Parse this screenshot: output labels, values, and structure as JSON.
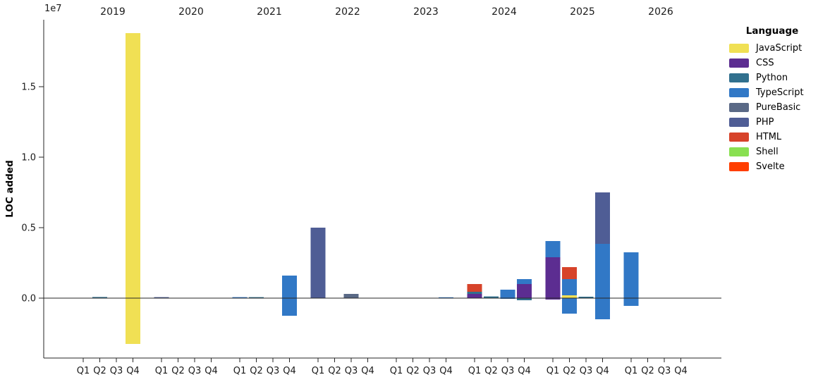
{
  "chart": {
    "ylabel": "LOC added",
    "offset_label": "1e7",
    "legend": {
      "title": "Language",
      "position": "right",
      "entries": [
        {
          "label": "JavaScript",
          "color": "#f0e054"
        },
        {
          "label": "CSS",
          "color": "#5c2d91"
        },
        {
          "label": "Python",
          "color": "#31708e"
        },
        {
          "label": "TypeScript",
          "color": "#3178c6"
        },
        {
          "label": "PureBasic",
          "color": "#5a6986"
        },
        {
          "label": "PHP",
          "color": "#4f5d95"
        },
        {
          "label": "HTML",
          "color": "#d7432a"
        },
        {
          "label": "Shell",
          "color": "#89e051"
        },
        {
          "label": "Svelte",
          "color": "#ff3e00"
        }
      ]
    }
  },
  "chart_data": {
    "type": "bar",
    "stacked": true,
    "title": "",
    "xlabel": "",
    "ylabel": "LOC added",
    "y_unit_multiplier": "1e7",
    "grid": false,
    "legend_position": "right",
    "years": [
      2019,
      2020,
      2021,
      2022,
      2023,
      2024,
      2025,
      2026
    ],
    "quarters": [
      "Q1",
      "Q2",
      "Q3",
      "Q4"
    ],
    "ylim": [
      -4250000,
      19750000
    ],
    "yticks": [
      {
        "value": 0,
        "label": "0.0"
      },
      {
        "value": 5000000,
        "label": "0.5"
      },
      {
        "value": 10000000,
        "label": "1.0"
      },
      {
        "value": 15000000,
        "label": "1.5"
      }
    ],
    "bars": [
      {
        "year": 2019,
        "quarter": "Q2",
        "segments": [
          {
            "language": "Python",
            "value": 80000
          }
        ]
      },
      {
        "year": 2019,
        "quarter": "Q4",
        "segments": [
          {
            "language": "JavaScript",
            "value": 18800000
          },
          {
            "language": "JavaScript",
            "value": -3250000
          }
        ]
      },
      {
        "year": 2020,
        "quarter": "Q1",
        "segments": [
          {
            "language": "PHP",
            "value": 70000
          }
        ]
      },
      {
        "year": 2021,
        "quarter": "Q1",
        "segments": [
          {
            "language": "TypeScript",
            "value": 70000
          }
        ]
      },
      {
        "year": 2021,
        "quarter": "Q2",
        "segments": [
          {
            "language": "Python",
            "value": 70000
          }
        ]
      },
      {
        "year": 2021,
        "quarter": "Q4",
        "segments": [
          {
            "language": "TypeScript",
            "value": 1600000
          },
          {
            "language": "TypeScript",
            "value": -1250000
          }
        ]
      },
      {
        "year": 2022,
        "quarter": "Q1",
        "segments": [
          {
            "language": "PHP",
            "value": 5000000
          }
        ]
      },
      {
        "year": 2022,
        "quarter": "Q3",
        "segments": [
          {
            "language": "PureBasic",
            "value": 300000
          }
        ]
      },
      {
        "year": 2023,
        "quarter": "Q4",
        "segments": [
          {
            "language": "TypeScript",
            "value": 60000
          }
        ]
      },
      {
        "year": 2024,
        "quarter": "Q1",
        "segments": [
          {
            "language": "CSS",
            "value": 300000
          },
          {
            "language": "Python",
            "value": 150000
          },
          {
            "language": "HTML",
            "value": 550000
          }
        ]
      },
      {
        "year": 2024,
        "quarter": "Q2",
        "segments": [
          {
            "language": "Python",
            "value": 120000
          }
        ]
      },
      {
        "year": 2024,
        "quarter": "Q3",
        "segments": [
          {
            "language": "TypeScript",
            "value": 600000
          },
          {
            "language": "TypeScript",
            "value": -50000
          }
        ]
      },
      {
        "year": 2024,
        "quarter": "Q4",
        "segments": [
          {
            "language": "CSS",
            "value": 1000000
          },
          {
            "language": "TypeScript",
            "value": 350000
          },
          {
            "language": "Python",
            "value": -150000
          }
        ]
      },
      {
        "year": 2025,
        "quarter": "Q1",
        "segments": [
          {
            "language": "CSS",
            "value": 2900000
          },
          {
            "language": "TypeScript",
            "value": 1150000
          },
          {
            "language": "CSS",
            "value": -100000
          }
        ]
      },
      {
        "year": 2025,
        "quarter": "Q2",
        "segments": [
          {
            "language": "JavaScript",
            "value": 200000
          },
          {
            "language": "TypeScript",
            "value": 1150000
          },
          {
            "language": "HTML",
            "value": 850000
          },
          {
            "language": "TypeScript",
            "value": -1100000
          }
        ]
      },
      {
        "year": 2025,
        "quarter": "Q3",
        "segments": [
          {
            "language": "Python",
            "value": 100000
          }
        ]
      },
      {
        "year": 2025,
        "quarter": "Q4",
        "segments": [
          {
            "language": "TypeScript",
            "value": 3850000
          },
          {
            "language": "PHP",
            "value": 3650000
          },
          {
            "language": "TypeScript",
            "value": -1500000
          }
        ]
      },
      {
        "year": 2026,
        "quarter": "Q1",
        "segments": [
          {
            "language": "TypeScript",
            "value": 3250000
          },
          {
            "language": "TypeScript",
            "value": -550000
          }
        ]
      }
    ]
  }
}
